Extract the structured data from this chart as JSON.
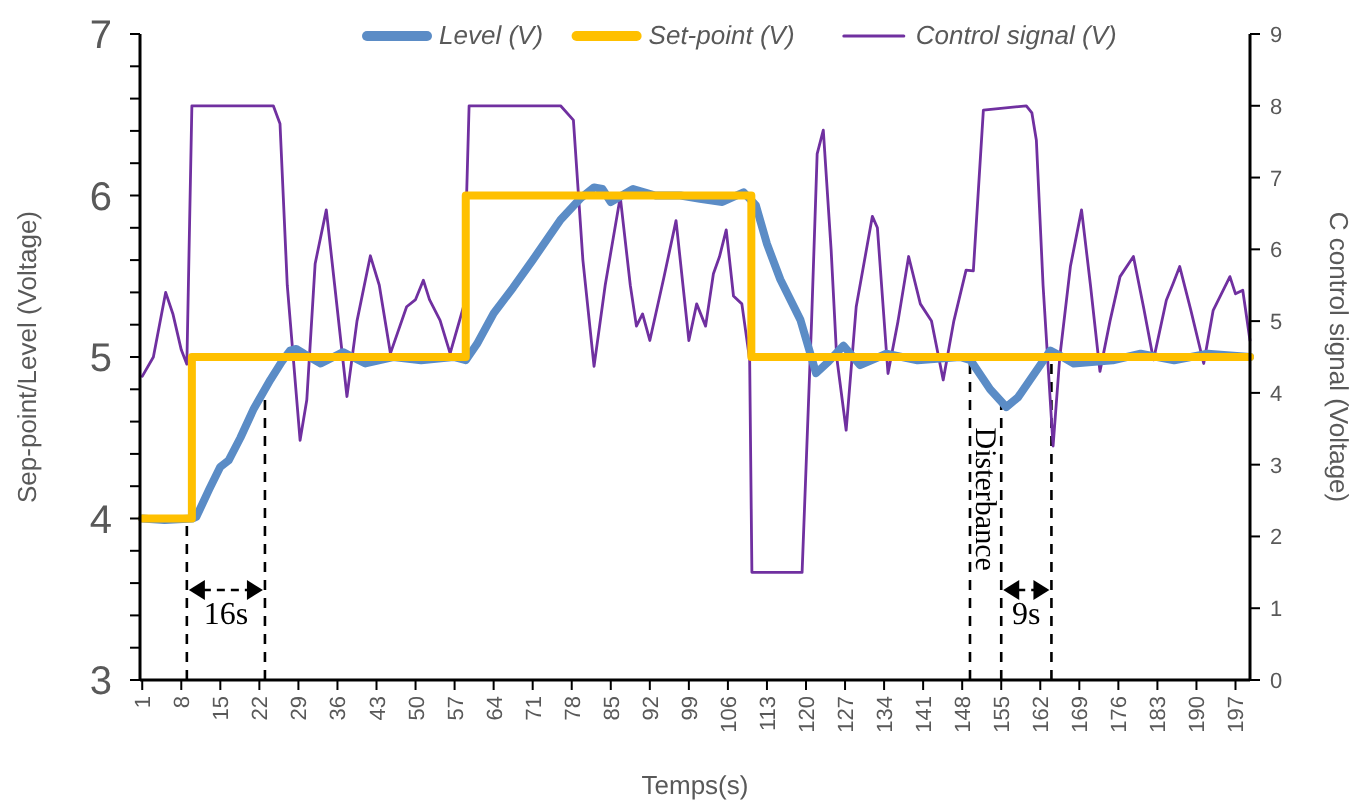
{
  "chart_data": {
    "type": "line",
    "xlabel": "Temps(s)",
    "ylabel": "Sep-point/Level (Voltage)",
    "y2label": "C control signal (Voltage)",
    "xlim": [
      0.6,
      199.6
    ],
    "xticks": [
      1,
      8,
      15,
      22,
      29,
      36,
      43,
      50,
      57,
      64,
      71,
      78,
      85,
      92,
      99,
      106,
      113,
      120,
      127,
      134,
      141,
      148,
      155,
      162,
      169,
      176,
      183,
      190,
      197
    ],
    "ylim": [
      3,
      7
    ],
    "yticks": [
      3,
      {
        "value": 3.2,
        "label": null
      },
      {
        "value": 3.4,
        "label": null
      },
      {
        "value": 3.6,
        "label": null
      },
      {
        "value": 3.8,
        "label": null
      },
      4,
      {
        "value": 4.2,
        "label": null
      },
      {
        "value": 4.4,
        "label": null
      },
      {
        "value": 4.6,
        "label": null
      },
      {
        "value": 4.8,
        "label": null
      },
      5,
      {
        "value": 5.2,
        "label": null
      },
      {
        "value": 5.4,
        "label": null
      },
      {
        "value": 5.6,
        "label": null
      },
      {
        "value": 5.8,
        "label": null
      },
      6,
      {
        "value": 6.2,
        "label": null
      },
      {
        "value": 6.4,
        "label": null
      },
      {
        "value": 6.6,
        "label": null
      },
      {
        "value": 6.8,
        "label": null
      },
      7
    ],
    "y2lim": [
      0,
      9
    ],
    "y2ticks": [
      0,
      1,
      2,
      3,
      4,
      5,
      6,
      7,
      8,
      9
    ],
    "grid": false,
    "legend": "top",
    "marker": "none",
    "series": [
      {
        "name": "Level (V)",
        "color": "#5b8cc6",
        "x": [
          1,
          5,
          10,
          10.7,
          13,
          15,
          16.5,
          18.6,
          21,
          24,
          26,
          27.5,
          28.6,
          30,
          33,
          37,
          41,
          46,
          51,
          56.8,
          59,
          61,
          64,
          67.5,
          71,
          76,
          79.5,
          82,
          83.5,
          85,
          89,
          93,
          97.5,
          101,
          105,
          108.8,
          111,
          113,
          115.4,
          119,
          121.8,
          124,
          126.7,
          129.7,
          134.4,
          140,
          147.6,
          149.5,
          153,
          155.9,
          158,
          160,
          163.8,
          166,
          168,
          175,
          180,
          186,
          192,
          199.6
        ],
        "values": [
          4.0,
          3.99,
          4.0,
          4.01,
          4.18,
          4.32,
          4.36,
          4.5,
          4.68,
          4.86,
          4.97,
          5.04,
          5.05,
          5.02,
          4.96,
          5.03,
          4.96,
          5.0,
          4.98,
          5.0,
          4.98,
          5.08,
          5.27,
          5.43,
          5.6,
          5.85,
          5.98,
          6.05,
          6.04,
          5.96,
          6.04,
          6.0,
          6.0,
          5.98,
          5.96,
          6.02,
          5.94,
          5.7,
          5.48,
          5.23,
          4.9,
          4.97,
          5.07,
          4.95,
          5.02,
          4.98,
          5.0,
          4.98,
          4.8,
          4.69,
          4.75,
          4.85,
          5.04,
          5.0,
          4.96,
          4.98,
          5.02,
          4.98,
          5.02,
          5.0
        ]
      },
      {
        "name": "Set-point (V)",
        "type": "step",
        "color": "#ffc000",
        "x": [
          1,
          9.9,
          59,
          110.2,
          199.6
        ],
        "values": [
          4,
          5,
          6,
          5,
          5
        ]
      },
      {
        "name": "Control signal (V)",
        "axis": "y2",
        "color": "#7030a0",
        "x": [
          1,
          3,
          5.2,
          6.5,
          8,
          9,
          9.9,
          24.5,
          25.7,
          27,
          29.3,
          30.5,
          32,
          34,
          35.5,
          37.7,
          39.5,
          41.9,
          43.5,
          45.5,
          48.4,
          50,
          51.4,
          52.5,
          54.4,
          56.2,
          58.6,
          59.6,
          76,
          78.3,
          80,
          82,
          84,
          86.7,
          88.5,
          89.6,
          90.7,
          92,
          94.5,
          96.7,
          99,
          100.4,
          102,
          103.4,
          104.5,
          105.7,
          107,
          108.5,
          109.9,
          110.3,
          119.3,
          121,
          122,
          123.1,
          124.5,
          125.5,
          127.2,
          129,
          131.9,
          132.8,
          134.7,
          136.5,
          138.4,
          140.5,
          142.5,
          144.6,
          146.5,
          148.7,
          150,
          151.8,
          159.5,
          160.5,
          161.3,
          162.5,
          164.3,
          165.5,
          167.4,
          169.4,
          171,
          172.7,
          174.5,
          176.3,
          178.7,
          180.5,
          182.3,
          184.6,
          185.8,
          187,
          189,
          191.3,
          193,
          196,
          197,
          198.3,
          199.6
        ],
        "values": [
          4.23,
          4.5,
          5.4,
          5.1,
          4.6,
          4.4,
          8,
          8,
          7.75,
          5.5,
          3.34,
          3.9,
          5.8,
          6.55,
          5.5,
          3.95,
          5.0,
          5.91,
          5.5,
          4.55,
          5.2,
          5.3,
          5.57,
          5.3,
          5.01,
          4.55,
          5.2,
          8,
          8,
          7.8,
          5.85,
          4.37,
          5.5,
          6.73,
          5.5,
          4.93,
          5.1,
          4.73,
          5.6,
          6.4,
          4.73,
          5.24,
          4.93,
          5.66,
          5.9,
          6.27,
          5.35,
          5.24,
          4.46,
          1.5,
          1.5,
          5.0,
          7.33,
          7.66,
          6.0,
          4.5,
          3.48,
          5.2,
          6.46,
          6.3,
          4.27,
          5.0,
          5.9,
          5.24,
          5.0,
          4.18,
          5.0,
          5.71,
          5.7,
          7.94,
          8,
          7.9,
          7.52,
          5.5,
          3.26,
          4.5,
          5.76,
          6.55,
          5.5,
          4.3,
          5.0,
          5.62,
          5.9,
          5.2,
          4.46,
          5.29,
          5.52,
          5.76,
          5.15,
          4.41,
          5.15,
          5.62,
          5.38,
          5.43,
          4.73
        ]
      }
    ],
    "ref_lines": [
      {
        "axis": "x",
        "value": 9,
        "line_style": "dashed",
        "color": "#000000"
      },
      {
        "axis": "x",
        "value": 23,
        "line_style": "dashed",
        "color": "#000000"
      },
      {
        "axis": "x",
        "value": 149.4,
        "line_style": "dashed",
        "color": "#000000"
      },
      {
        "axis": "x",
        "value": 155,
        "line_style": "dashed",
        "color": "#000000"
      },
      {
        "axis": "x",
        "value": 164,
        "line_style": "dashed",
        "color": "#000000"
      }
    ],
    "annotations": [
      "16s",
      "Disterbance",
      "9s"
    ]
  }
}
